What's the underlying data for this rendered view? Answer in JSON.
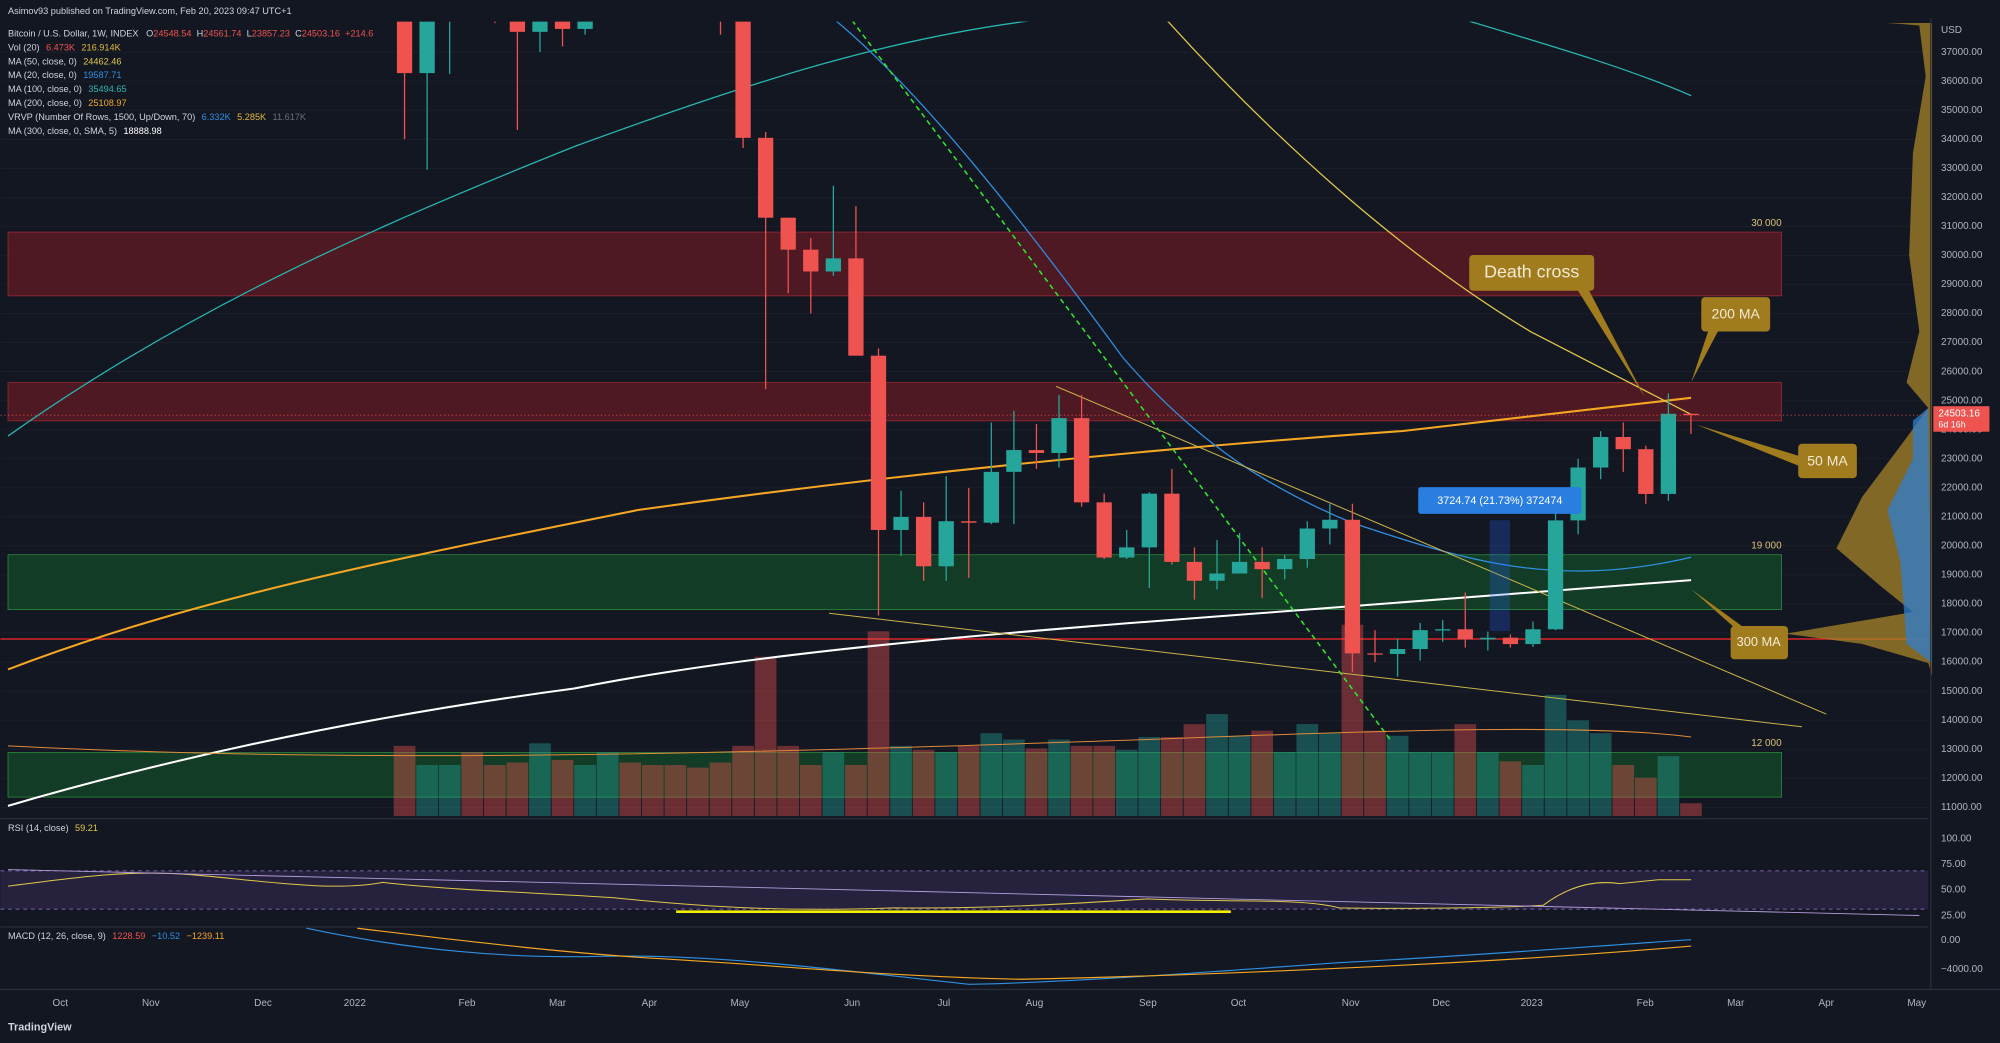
{
  "header": {
    "publisher": "Asimov93 published on TradingView.com, Feb 20, 2023 09:47 UTC+1",
    "symbol": "Bitcoin / U.S. Dollar, 1W, INDEX",
    "ohlc_prefix": [
      "O",
      "H",
      "L",
      "C"
    ],
    "change": "+214.6",
    "brand": "TradingView"
  },
  "legend": [
    {
      "name": "Vol (20)",
      "values": [
        {
          "text": "6.473K",
          "color": "#ef5350"
        },
        {
          "text": "216.914K",
          "color": "#e0b83a"
        }
      ]
    },
    {
      "name": "MA (50, close, 0)",
      "values": [
        {
          "text": "24462.46",
          "color": "#e0c84a"
        }
      ]
    },
    {
      "name": "MA (20, close, 0)",
      "values": [
        {
          "text": "19587.71",
          "color": "#2f8fe0"
        }
      ]
    },
    {
      "name": "MA (100, close, 0)",
      "values": [
        {
          "text": "35494.65",
          "color": "#26b6b0"
        }
      ]
    },
    {
      "name": "MA (200, close, 0)",
      "values": [
        {
          "text": "25108.97",
          "color": "#f5a623"
        }
      ]
    },
    {
      "name": "VRVP (Number Of Rows, 1500, Up/Down, 70)",
      "values": [
        {
          "text": "6.332K",
          "color": "#2f8fe0"
        },
        {
          "text": "5.285K",
          "color": "#e0b83a"
        },
        {
          "text": "11.617K",
          "color": "#6a6d78"
        }
      ]
    },
    {
      "name": "MA (300, close, 0, SMA, 5)",
      "values": [
        {
          "text": "18888.98",
          "color": "#ffffff"
        }
      ]
    }
  ],
  "chart_data": {
    "type": "candlestick",
    "open": [
      43080,
      36280,
      38150,
      42400,
      42200,
      38350,
      37700,
      38400,
      37800,
      41250,
      46800,
      46400,
      42150,
      39700,
      39450,
      38470,
      34050,
      31300,
      30200,
      29450,
      29900,
      26550,
      20550,
      21000,
      19300,
      20850,
      20800,
      22550,
      23300,
      23200,
      24400,
      21500,
      19600,
      19950,
      21800,
      19450,
      18800,
      19050,
      19450,
      19200,
      19550,
      20600,
      20900,
      16300,
      16280,
      16450,
      17100,
      17130,
      16780,
      16840,
      16620,
      17130,
      20880,
      22700,
      23750,
      23330,
      21790,
      24548.54
    ],
    "high": [
      43500,
      38920,
      42600,
      45850,
      44750,
      39850,
      45400,
      42600,
      42300,
      47700,
      48200,
      47200,
      42400,
      42950,
      40800,
      40000,
      34250,
      31300,
      30600,
      32400,
      31700,
      26800,
      21900,
      21500,
      22400,
      22000,
      24250,
      24650,
      24200,
      25200,
      25200,
      21800,
      20550,
      21850,
      22650,
      19950,
      20200,
      20450,
      19950,
      19700,
      20850,
      21450,
      21450,
      17100,
      16800,
      17350,
      17450,
      18400,
      17050,
      16950,
      17400,
      21250,
      23000,
      23950,
      24250,
      23450,
      25250,
      24561.74
    ],
    "low": [
      34000,
      32950,
      36250,
      41700,
      38000,
      34320,
      37000,
      37200,
      37600,
      40500,
      44200,
      42100,
      39200,
      38500,
      37600,
      33700,
      25400,
      28700,
      28000,
      29300,
      26550,
      17600,
      19650,
      18800,
      18800,
      18900,
      20750,
      20750,
      22650,
      22700,
      21350,
      19550,
      19550,
      18550,
      19350,
      18150,
      18500,
      19050,
      18200,
      18850,
      19250,
      20050,
      15650,
      16000,
      15500,
      16050,
      16700,
      16500,
      16400,
      16500,
      16520,
      17100,
      20400,
      22300,
      22550,
      21450,
      21550,
      23857.23
    ],
    "close": [
      36280,
      38150,
      42400,
      42200,
      38350,
      37700,
      38400,
      37800,
      41250,
      46800,
      46400,
      42150,
      39700,
      39450,
      38470,
      34050,
      31300,
      30200,
      29450,
      29900,
      26550,
      20550,
      21000,
      19300,
      20850,
      20800,
      22550,
      23300,
      23200,
      24400,
      21500,
      19600,
      19950,
      21800,
      19450,
      18800,
      19050,
      19450,
      19200,
      19550,
      20600,
      20900,
      16300,
      16280,
      16450,
      17100,
      17130,
      16780,
      16840,
      16620,
      17130,
      20880,
      22700,
      23750,
      23330,
      21790,
      24550,
      24503.16
    ],
    "volume": [
      35.5,
      25.8,
      25.8,
      32.3,
      25.8,
      27.1,
      36.8,
      28.4,
      25.8,
      32.3,
      27.1,
      25.8,
      25.8,
      24.5,
      27.1,
      35.5,
      80.6,
      35.5,
      25.8,
      32.3,
      25.8,
      93.5,
      35.5,
      33.5,
      32.3,
      35.5,
      41.9,
      38.7,
      34.2,
      38.7,
      35.5,
      35.5,
      33.5,
      40,
      40,
      46.5,
      51.6,
      40.6,
      43.2,
      32.3,
      46.5,
      41.9,
      96.8,
      43.2,
      40.6,
      32.3,
      32.3,
      46.5,
      32.3,
      27.7,
      25.8,
      61.3,
      48.4,
      41.9,
      25.8,
      19.4,
      30.3,
      6.473
    ],
    "up_color": "#26a69a",
    "down_color": "#ef5350",
    "ylim": [
      10700,
      38050
    ],
    "yticks": [
      {
        "value": 11000,
        "label": "11000.00"
      },
      {
        "value": 12000,
        "label": "12000.00"
      },
      {
        "value": 13000,
        "label": "13000.00"
      },
      {
        "value": 14000,
        "label": "14000.00"
      },
      {
        "value": 15000,
        "label": "15000.00"
      },
      {
        "value": 16000,
        "label": "16000.00"
      },
      {
        "value": 17000,
        "label": "17000.00"
      },
      {
        "value": 18000,
        "label": "18000.00"
      },
      {
        "value": 19000,
        "label": "19000.00"
      },
      {
        "value": 20000,
        "label": "20000.00"
      },
      {
        "value": 21000,
        "label": "21000.00"
      },
      {
        "value": 22000,
        "label": "22000.00"
      },
      {
        "value": 23000,
        "label": "23000.00"
      },
      {
        "value": 24000,
        "label": "24000.00"
      },
      {
        "value": 25000,
        "label": "25000.00"
      },
      {
        "value": 26000,
        "label": "26000.00"
      },
      {
        "value": 27000,
        "label": "27000.00"
      },
      {
        "value": 28000,
        "label": "28000.00"
      },
      {
        "value": 29000,
        "label": "29000.00"
      },
      {
        "value": 30000,
        "label": "30000.00"
      },
      {
        "value": 31000,
        "label": "31000.00"
      },
      {
        "value": 32000,
        "label": "32000.00"
      },
      {
        "value": 33000,
        "label": "33000.00"
      },
      {
        "value": 34000,
        "label": "34000.00"
      },
      {
        "value": 35000,
        "label": "35000.00"
      },
      {
        "value": 36000,
        "label": "36000.00"
      },
      {
        "value": 37000,
        "label": "37000.00"
      }
    ],
    "currency": "USD",
    "countdown": "6d 16h",
    "xticks": [
      "Oct",
      "Nov",
      "Dec",
      "2022",
      "Feb",
      "Mar",
      "Apr",
      "May",
      "Jun",
      "Jul",
      "Aug",
      "Sep",
      "Oct",
      "Nov",
      "Dec",
      "2023",
      "Feb",
      "Mar",
      "Apr",
      "May"
    ],
    "zones": [
      {
        "low": 28610,
        "high": 30806,
        "label": "30 000",
        "color": "#6e1a25"
      },
      {
        "low": 24307,
        "high": 25624,
        "color": "#6e1a25"
      },
      {
        "low": 17807,
        "high": 19696,
        "label": "19 000",
        "color": "#14502a"
      },
      {
        "low": 11351,
        "high": 12888,
        "label": "12 000",
        "color": "#14502a"
      }
    ],
    "support_line": {
      "value": 16797,
      "color": "#ff2a2a"
    },
    "annotations": {
      "death_cross": "Death cross",
      "ma200": "200 MA",
      "ma50": "50 MA",
      "ma300": "300 MA",
      "measure": "3724.74 (21.73%) 372474"
    },
    "rsi": {
      "title": "RSI (14, close)",
      "value": "59.21",
      "ylim": [
        14,
        116
      ],
      "yticks": [
        {
          "value": 100,
          "label": "100.00"
        },
        {
          "value": 75,
          "label": "75.00"
        },
        {
          "value": 50,
          "label": "50.00"
        },
        {
          "value": 25,
          "label": "25.00"
        }
      ]
    },
    "macd": {
      "title": "MACD (12, 26, close, 9)",
      "values": [
        {
          "text": "1228.59",
          "color": "#ef5350"
        },
        {
          "text": "−10.52",
          "color": "#2f8fe0"
        },
        {
          "text": "−1239.11",
          "color": "#f5a623"
        }
      ],
      "ylim": [
        -6700,
        1800
      ],
      "yticks": [
        {
          "value": 0,
          "label": "0.00"
        },
        {
          "value": -4000,
          "label": "−4000.00"
        }
      ]
    }
  }
}
